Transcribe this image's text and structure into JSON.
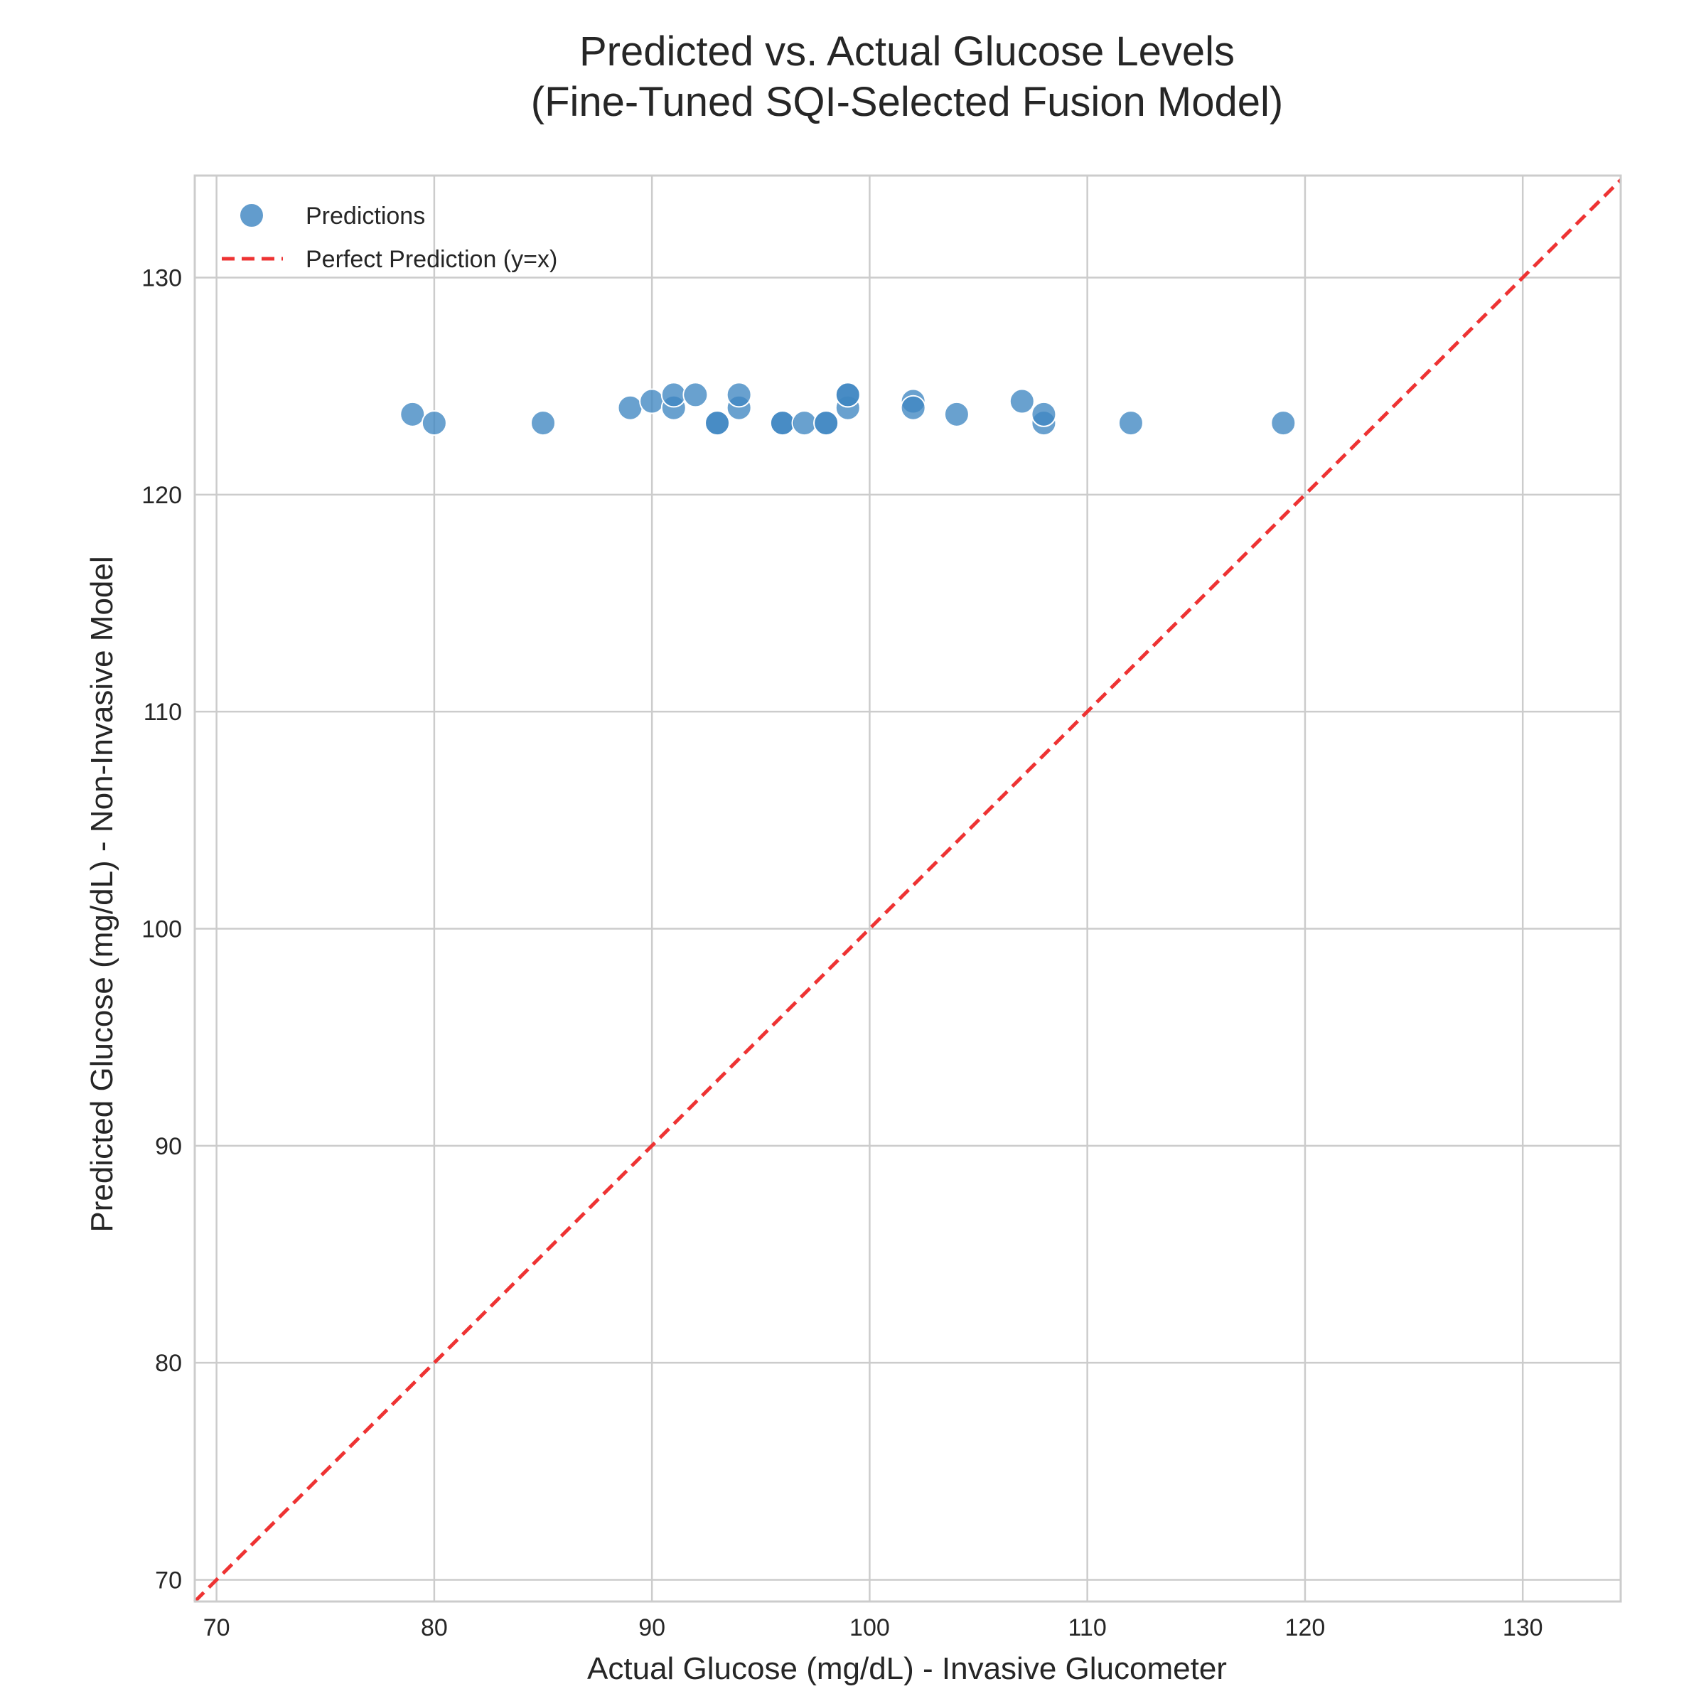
{
  "chart_data": {
    "type": "scatter",
    "title": [
      "Predicted vs. Actual Glucose Levels",
      "(Fine-Tuned SQI-Selected Fusion Model)"
    ],
    "xlabel": "Actual Glucose (mg/dL) - Invasive Glucometer",
    "ylabel": "Predicted Glucose (mg/dL) - Non-Invasive Model",
    "xlim": [
      69,
      134.5
    ],
    "ylim": [
      69,
      134.7
    ],
    "xticks": [
      70,
      80,
      90,
      100,
      110,
      120,
      130
    ],
    "yticks": [
      70,
      80,
      90,
      100,
      110,
      120,
      130
    ],
    "grid": true,
    "legend_position": "top-left",
    "colors": {
      "points": "#3f86c2",
      "reference": "#ee3333",
      "grid": "#cccccc"
    },
    "series": [
      {
        "name": "Predictions",
        "kind": "scatter",
        "points": [
          [
            79,
            123.7
          ],
          [
            80,
            123.3
          ],
          [
            85,
            123.3
          ],
          [
            89,
            124.0
          ],
          [
            90,
            124.3
          ],
          [
            91,
            124.0
          ],
          [
            91,
            124.6
          ],
          [
            92,
            124.6
          ],
          [
            93,
            123.3
          ],
          [
            93,
            123.3
          ],
          [
            94,
            124.0
          ],
          [
            94,
            124.6
          ],
          [
            96,
            123.3
          ],
          [
            96,
            123.3
          ],
          [
            97,
            123.3
          ],
          [
            98,
            123.3
          ],
          [
            98,
            123.3
          ],
          [
            99,
            124.0
          ],
          [
            99,
            124.6
          ],
          [
            99,
            124.6
          ],
          [
            102,
            124.3
          ],
          [
            102,
            124.0
          ],
          [
            104,
            123.7
          ],
          [
            107,
            124.3
          ],
          [
            108,
            123.3
          ],
          [
            108,
            123.7
          ],
          [
            112,
            123.3
          ],
          [
            119,
            123.3
          ]
        ]
      },
      {
        "name": "Perfect Prediction (y=x)",
        "kind": "line",
        "style": "dashed",
        "points": [
          [
            69,
            69
          ],
          [
            134.5,
            134.5
          ]
        ]
      }
    ]
  }
}
